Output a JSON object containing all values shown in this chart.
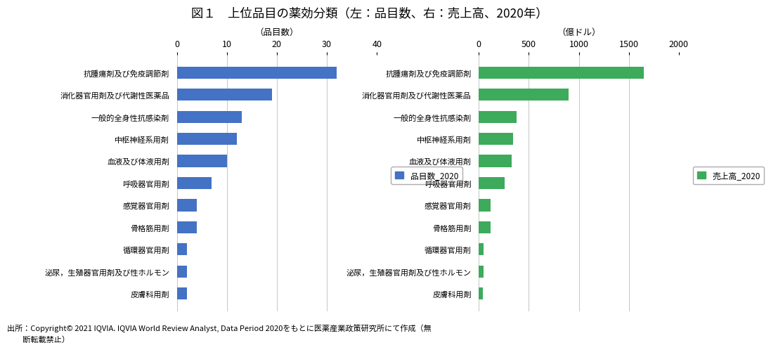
{
  "title": "図１　上位品目の薬効分類（左：品目数、右：売上高、2020年）",
  "categories": [
    "抗腫瘍剤及び免疫調節剤",
    "消化器官用剤及び代謝性医薬品",
    "一般的全身性抗感染剤",
    "中枢神経系用剤",
    "血液及び体液用剤",
    "呼吸器官用剤",
    "感覚器官用剤",
    "骨格筋用剤",
    "循環器官用剤",
    "泌尿，生殖器官用剤及び性ホルモン",
    "皮膚科用剤"
  ],
  "left_values": [
    32,
    19,
    13,
    12,
    10,
    7,
    4,
    4,
    2,
    2,
    2
  ],
  "right_values": [
    1650,
    900,
    380,
    340,
    330,
    260,
    115,
    115,
    50,
    45,
    40
  ],
  "left_color": "#4472C4",
  "right_color": "#3DAA5C",
  "left_xlabel": "（品目数）",
  "right_xlabel": "（億ドル）",
  "left_xlim": [
    0,
    40
  ],
  "right_xlim": [
    0,
    2000
  ],
  "left_xticks": [
    0,
    10,
    20,
    30,
    40
  ],
  "right_xticks": [
    0,
    500,
    1000,
    1500,
    2000
  ],
  "left_legend": "品目数_2020",
  "right_legend": "売上高_2020",
  "footnote1": "出所：Copyright© 2021 IQVIA. IQVIA World Review Analyst, Data Period 2020をもとに医薬産業政策研究所にて作成（無",
  "footnote2": "　　断転載禁止）",
  "bg_color": "#FFFFFF",
  "grid_color": "#BBBBBB",
  "bar_height": 0.55
}
